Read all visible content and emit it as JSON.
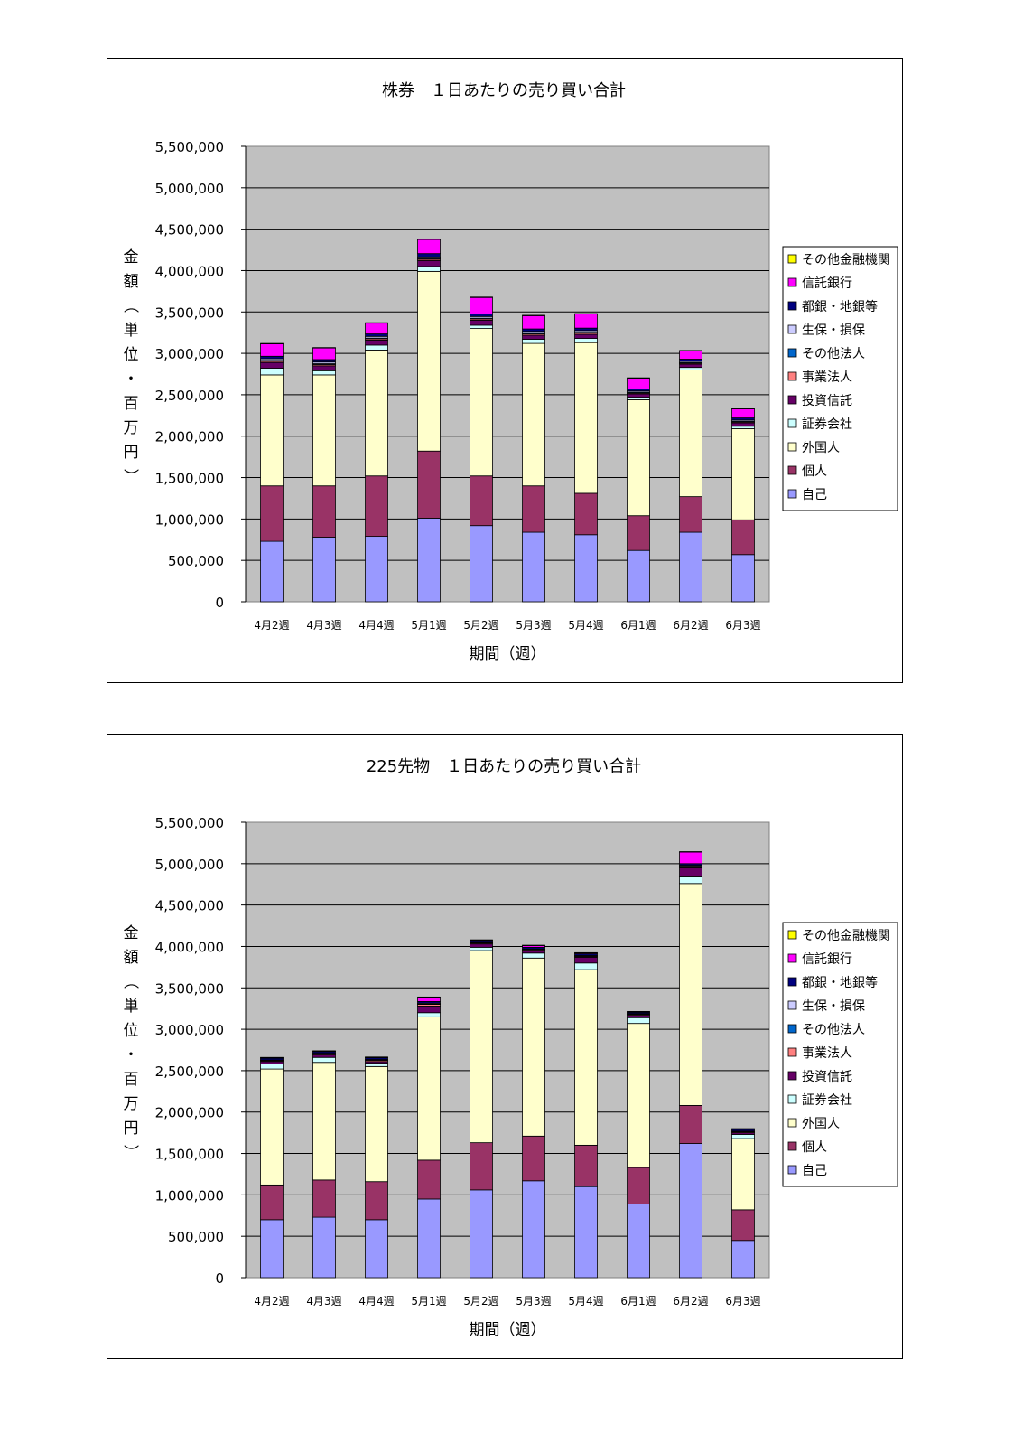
{
  "chart_data": [
    {
      "type": "bar",
      "stacked": true,
      "title": "株券　１日あたりの売り買い合計",
      "xlabel": "期間（週）",
      "ylabel": "金額（単位・百万円）",
      "ylim": [
        0,
        5500000
      ],
      "yticks": [
        "0",
        "500,000",
        "1,000,000",
        "1,500,000",
        "2,000,000",
        "2,500,000",
        "3,000,000",
        "3,500,000",
        "4,000,000",
        "4,500,000",
        "5,000,000",
        "5,500,000"
      ],
      "grid": true,
      "legend": "right",
      "categories": [
        "4月2週",
        "4月3週",
        "4月4週",
        "5月1週",
        "5月2週",
        "5月3週",
        "5月4週",
        "6月1週",
        "6月2週",
        "6月3週"
      ],
      "series": [
        {
          "name": "自己",
          "color": "#9999FF",
          "values": [
            730000,
            780000,
            790000,
            1010000,
            920000,
            840000,
            810000,
            620000,
            840000,
            570000
          ]
        },
        {
          "name": "個人",
          "color": "#993366",
          "values": [
            670000,
            620000,
            730000,
            810000,
            600000,
            560000,
            500000,
            420000,
            430000,
            420000
          ]
        },
        {
          "name": "外国人",
          "color": "#FFFFCC",
          "values": [
            1340000,
            1340000,
            1520000,
            2170000,
            1780000,
            1720000,
            1820000,
            1400000,
            1530000,
            1100000
          ]
        },
        {
          "name": "証券会社",
          "color": "#CCFFFF",
          "values": [
            80000,
            50000,
            60000,
            60000,
            40000,
            50000,
            50000,
            30000,
            30000,
            30000
          ]
        },
        {
          "name": "投資信託",
          "color": "#660066",
          "values": [
            70000,
            60000,
            60000,
            70000,
            60000,
            50000,
            50000,
            40000,
            40000,
            40000
          ]
        },
        {
          "name": "事業法人",
          "color": "#FF8080",
          "values": [
            15000,
            15000,
            15000,
            15000,
            15000,
            15000,
            15000,
            10000,
            10000,
            10000
          ]
        },
        {
          "name": "その他法人",
          "color": "#0066CC",
          "values": [
            10000,
            10000,
            10000,
            10000,
            10000,
            10000,
            10000,
            10000,
            10000,
            10000
          ]
        },
        {
          "name": "生保・損保",
          "color": "#CCCCFF",
          "values": [
            20000,
            20000,
            20000,
            20000,
            20000,
            20000,
            20000,
            15000,
            15000,
            15000
          ]
        },
        {
          "name": "都銀・地銀等",
          "color": "#000080",
          "values": [
            30000,
            30000,
            30000,
            40000,
            30000,
            30000,
            30000,
            25000,
            25000,
            25000
          ]
        },
        {
          "name": "信託銀行",
          "color": "#FF00FF",
          "values": [
            150000,
            140000,
            130000,
            170000,
            200000,
            160000,
            170000,
            130000,
            100000,
            110000
          ]
        },
        {
          "name": "その他金融機関",
          "color": "#FFFF00",
          "values": [
            5000,
            5000,
            5000,
            5000,
            5000,
            5000,
            5000,
            5000,
            5000,
            5000
          ]
        }
      ]
    },
    {
      "type": "bar",
      "stacked": true,
      "title": "225先物　１日あたりの売り買い合計",
      "xlabel": "期間（週）",
      "ylabel": "金額（単位・百万円）",
      "ylim": [
        0,
        5500000
      ],
      "yticks": [
        "0",
        "500,000",
        "1,000,000",
        "1,500,000",
        "2,000,000",
        "2,500,000",
        "3,000,000",
        "3,500,000",
        "4,000,000",
        "4,500,000",
        "5,000,000",
        "5,500,000"
      ],
      "grid": true,
      "legend": "right",
      "categories": [
        "4月2週",
        "4月3週",
        "4月4週",
        "5月1週",
        "5月2週",
        "5月3週",
        "5月4週",
        "6月1週",
        "6月2週",
        "6月3週"
      ],
      "series": [
        {
          "name": "自己",
          "color": "#9999FF",
          "values": [
            700000,
            730000,
            700000,
            950000,
            1060000,
            1170000,
            1100000,
            890000,
            1620000,
            450000
          ]
        },
        {
          "name": "個人",
          "color": "#993366",
          "values": [
            420000,
            450000,
            460000,
            470000,
            570000,
            540000,
            500000,
            440000,
            460000,
            370000
          ]
        },
        {
          "name": "外国人",
          "color": "#FFFFCC",
          "values": [
            1400000,
            1420000,
            1390000,
            1730000,
            2320000,
            2150000,
            2120000,
            1740000,
            2680000,
            860000
          ]
        },
        {
          "name": "証券会社",
          "color": "#CCFFFF",
          "values": [
            60000,
            60000,
            40000,
            50000,
            40000,
            60000,
            80000,
            70000,
            80000,
            50000
          ]
        },
        {
          "name": "投資信託",
          "color": "#660066",
          "values": [
            30000,
            30000,
            20000,
            80000,
            40000,
            30000,
            70000,
            30000,
            110000,
            20000
          ]
        },
        {
          "name": "事業法人",
          "color": "#FF8080",
          "values": [
            10000,
            10000,
            15000,
            20000,
            10000,
            10000,
            10000,
            10000,
            15000,
            10000
          ]
        },
        {
          "name": "その他法人",
          "color": "#0066CC",
          "values": [
            5000,
            5000,
            5000,
            5000,
            5000,
            5000,
            5000,
            5000,
            5000,
            5000
          ]
        },
        {
          "name": "生保・損保",
          "color": "#CCCCFF",
          "values": [
            5000,
            5000,
            5000,
            10000,
            5000,
            5000,
            5000,
            5000,
            10000,
            5000
          ]
        },
        {
          "name": "都銀・地銀等",
          "color": "#000080",
          "values": [
            20000,
            20000,
            20000,
            20000,
            20000,
            20000,
            20000,
            15000,
            20000,
            20000
          ]
        },
        {
          "name": "信託銀行",
          "color": "#FF00FF",
          "values": [
            5000,
            5000,
            5000,
            50000,
            5000,
            20000,
            10000,
            5000,
            140000,
            5000
          ]
        },
        {
          "name": "その他金融機関",
          "color": "#FFFF00",
          "values": [
            5000,
            5000,
            5000,
            5000,
            5000,
            5000,
            5000,
            5000,
            5000,
            5000
          ]
        }
      ]
    }
  ]
}
